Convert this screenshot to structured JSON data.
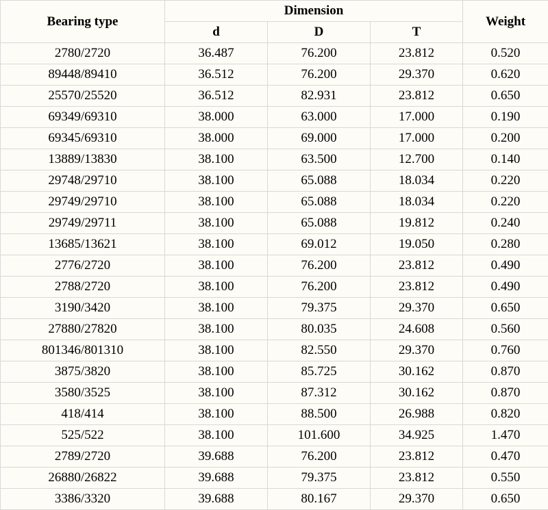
{
  "table": {
    "headers": {
      "bearing_type": "Bearing type",
      "dimension_group": "Dimension",
      "d": "d",
      "D": "D",
      "T": "T",
      "weight": "Weight"
    },
    "rows": [
      {
        "type": "2780/2720",
        "d": "36.487",
        "D": "76.200",
        "T": "23.812",
        "weight": "0.520"
      },
      {
        "type": "89448/89410",
        "d": "36.512",
        "D": "76.200",
        "T": "29.370",
        "weight": "0.620"
      },
      {
        "type": "25570/25520",
        "d": "36.512",
        "D": "82.931",
        "T": "23.812",
        "weight": "0.650"
      },
      {
        "type": "69349/69310",
        "d": "38.000",
        "D": "63.000",
        "T": "17.000",
        "weight": "0.190"
      },
      {
        "type": "69345/69310",
        "d": "38.000",
        "D": "69.000",
        "T": "17.000",
        "weight": "0.200"
      },
      {
        "type": "13889/13830",
        "d": "38.100",
        "D": "63.500",
        "T": "12.700",
        "weight": "0.140"
      },
      {
        "type": "29748/29710",
        "d": "38.100",
        "D": "65.088",
        "T": "18.034",
        "weight": "0.220"
      },
      {
        "type": "29749/29710",
        "d": "38.100",
        "D": "65.088",
        "T": "18.034",
        "weight": "0.220"
      },
      {
        "type": "29749/29711",
        "d": "38.100",
        "D": "65.088",
        "T": "19.812",
        "weight": "0.240"
      },
      {
        "type": "13685/13621",
        "d": "38.100",
        "D": "69.012",
        "T": "19.050",
        "weight": "0.280"
      },
      {
        "type": "2776/2720",
        "d": "38.100",
        "D": "76.200",
        "T": "23.812",
        "weight": "0.490"
      },
      {
        "type": "2788/2720",
        "d": "38.100",
        "D": "76.200",
        "T": "23.812",
        "weight": "0.490"
      },
      {
        "type": "3190/3420",
        "d": "38.100",
        "D": "79.375",
        "T": "29.370",
        "weight": "0.650"
      },
      {
        "type": "27880/27820",
        "d": "38.100",
        "D": "80.035",
        "T": "24.608",
        "weight": "0.560"
      },
      {
        "type": "801346/801310",
        "d": "38.100",
        "D": "82.550",
        "T": "29.370",
        "weight": "0.760"
      },
      {
        "type": "3875/3820",
        "d": "38.100",
        "D": "85.725",
        "T": "30.162",
        "weight": "0.870"
      },
      {
        "type": "3580/3525",
        "d": "38.100",
        "D": "87.312",
        "T": "30.162",
        "weight": "0.870"
      },
      {
        "type": "418/414",
        "d": "38.100",
        "D": "88.500",
        "T": "26.988",
        "weight": "0.820"
      },
      {
        "type": "525/522",
        "d": "38.100",
        "D": "101.600",
        "T": "34.925",
        "weight": "1.470"
      },
      {
        "type": "2789/2720",
        "d": "39.688",
        "D": "76.200",
        "T": "23.812",
        "weight": "0.470"
      },
      {
        "type": "26880/26822",
        "d": "39.688",
        "D": "79.375",
        "T": "23.812",
        "weight": "0.550"
      },
      {
        "type": "3386/3320",
        "d": "39.688",
        "D": "80.167",
        "T": "29.370",
        "weight": "0.650"
      }
    ],
    "column_widths": {
      "type": 240,
      "d": 150,
      "D": 150,
      "T": 135,
      "weight": 125
    },
    "background_color": "#fdfcf6",
    "border_color": "#d8d8d8",
    "text_color": "#000000",
    "font_family": "Times New Roman",
    "header_fontsize": 19,
    "body_fontsize": 19
  }
}
